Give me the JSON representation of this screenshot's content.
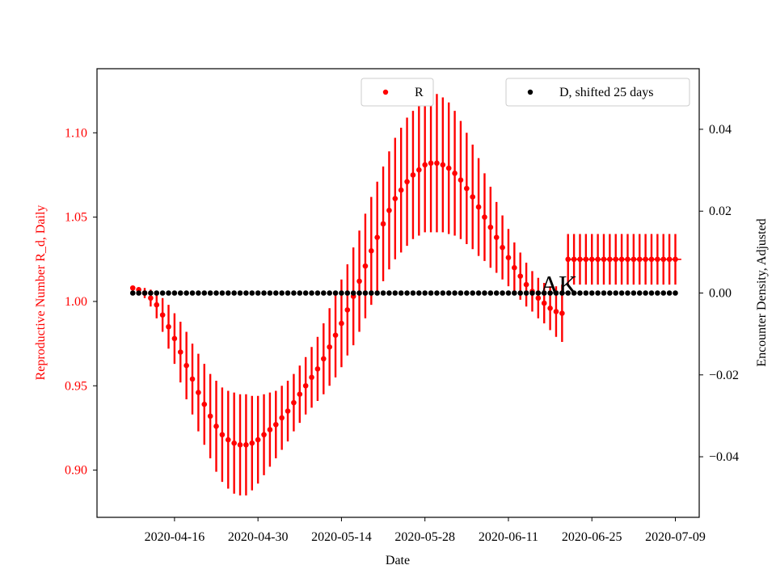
{
  "chart_data": {
    "type": "scatter",
    "xlabel": "Date",
    "ylabel_left": "Reproductive Number R_d, Daily",
    "ylabel_right": "Encounter Density, Adjusted",
    "annotation": "AK",
    "left_axis_color": "#ff0000",
    "right_axis_color": "#000000",
    "x_range": [
      "2020-04-03",
      "2020-07-13"
    ],
    "ylim_left": [
      0.872,
      1.138
    ],
    "ylim_right": [
      -0.0548,
      0.0548
    ],
    "x_ticks": [
      "2020-04-16",
      "2020-04-30",
      "2020-05-14",
      "2020-05-28",
      "2020-06-11",
      "2020-06-25",
      "2020-07-09"
    ],
    "y_ticks_left": [
      "0.90",
      "0.95",
      "1.00",
      "1.05",
      "1.10"
    ],
    "y_ticks_right": [
      "−0.04",
      "−0.02",
      "0.00",
      "0.02",
      "0.04"
    ],
    "legend_left_position": "upper center",
    "legend_right_position": "upper right",
    "grid": false,
    "series": [
      {
        "name": "R",
        "axis": "left",
        "color": "#ff0000",
        "marker": "dot",
        "start_date": "2020-04-09",
        "values": [
          1.008,
          1.007,
          1.005,
          1.002,
          0.998,
          0.992,
          0.985,
          0.978,
          0.97,
          0.962,
          0.954,
          0.946,
          0.939,
          0.932,
          0.926,
          0.921,
          0.918,
          0.916,
          0.915,
          0.915,
          0.916,
          0.918,
          0.921,
          0.924,
          0.927,
          0.931,
          0.935,
          0.94,
          0.945,
          0.95,
          0.955,
          0.96,
          0.966,
          0.973,
          0.98,
          0.987,
          0.995,
          1.003,
          1.012,
          1.021,
          1.03,
          1.038,
          1.046,
          1.054,
          1.061,
          1.066,
          1.071,
          1.075,
          1.078,
          1.081,
          1.082,
          1.082,
          1.081,
          1.079,
          1.076,
          1.072,
          1.067,
          1.062,
          1.056,
          1.05,
          1.044,
          1.038,
          1.032,
          1.026,
          1.02,
          1.015,
          1.01,
          1.006,
          1.002,
          0.999,
          0.996,
          0.994,
          0.993,
          1.025,
          1.025,
          1.025,
          1.025,
          1.025,
          1.025,
          1.025,
          1.025,
          1.025,
          1.025,
          1.025,
          1.025,
          1.025,
          1.025,
          1.025,
          1.025,
          1.025,
          1.025,
          1.025
        ],
        "err_half_width": [
          0.0,
          0.0,
          0.003,
          0.005,
          0.008,
          0.01,
          0.013,
          0.015,
          0.018,
          0.02,
          0.021,
          0.023,
          0.024,
          0.025,
          0.027,
          0.028,
          0.029,
          0.03,
          0.03,
          0.03,
          0.028,
          0.026,
          0.024,
          0.022,
          0.02,
          0.019,
          0.018,
          0.017,
          0.017,
          0.017,
          0.018,
          0.019,
          0.021,
          0.023,
          0.025,
          0.026,
          0.027,
          0.029,
          0.03,
          0.031,
          0.032,
          0.033,
          0.034,
          0.035,
          0.036,
          0.037,
          0.038,
          0.038,
          0.039,
          0.04,
          0.041,
          0.041,
          0.04,
          0.039,
          0.037,
          0.035,
          0.033,
          0.031,
          0.029,
          0.026,
          0.024,
          0.021,
          0.019,
          0.017,
          0.015,
          0.014,
          0.013,
          0.012,
          0.012,
          0.012,
          0.013,
          0.015,
          0.017,
          0.015,
          0.015,
          0.015,
          0.015,
          0.015,
          0.015,
          0.015,
          0.015,
          0.015,
          0.015,
          0.015,
          0.015,
          0.015,
          0.015,
          0.015,
          0.015,
          0.015,
          0.015,
          0.015
        ],
        "flat_tail": {
          "from": "2020-06-21",
          "to": "2020-07-10",
          "value": 1.025
        }
      },
      {
        "name": "D, shifted 25 days",
        "axis": "right",
        "color": "#000000",
        "marker": "dot",
        "x_start": "2020-04-09",
        "x_end": "2020-07-09",
        "constant_value": 0.0
      }
    ]
  }
}
